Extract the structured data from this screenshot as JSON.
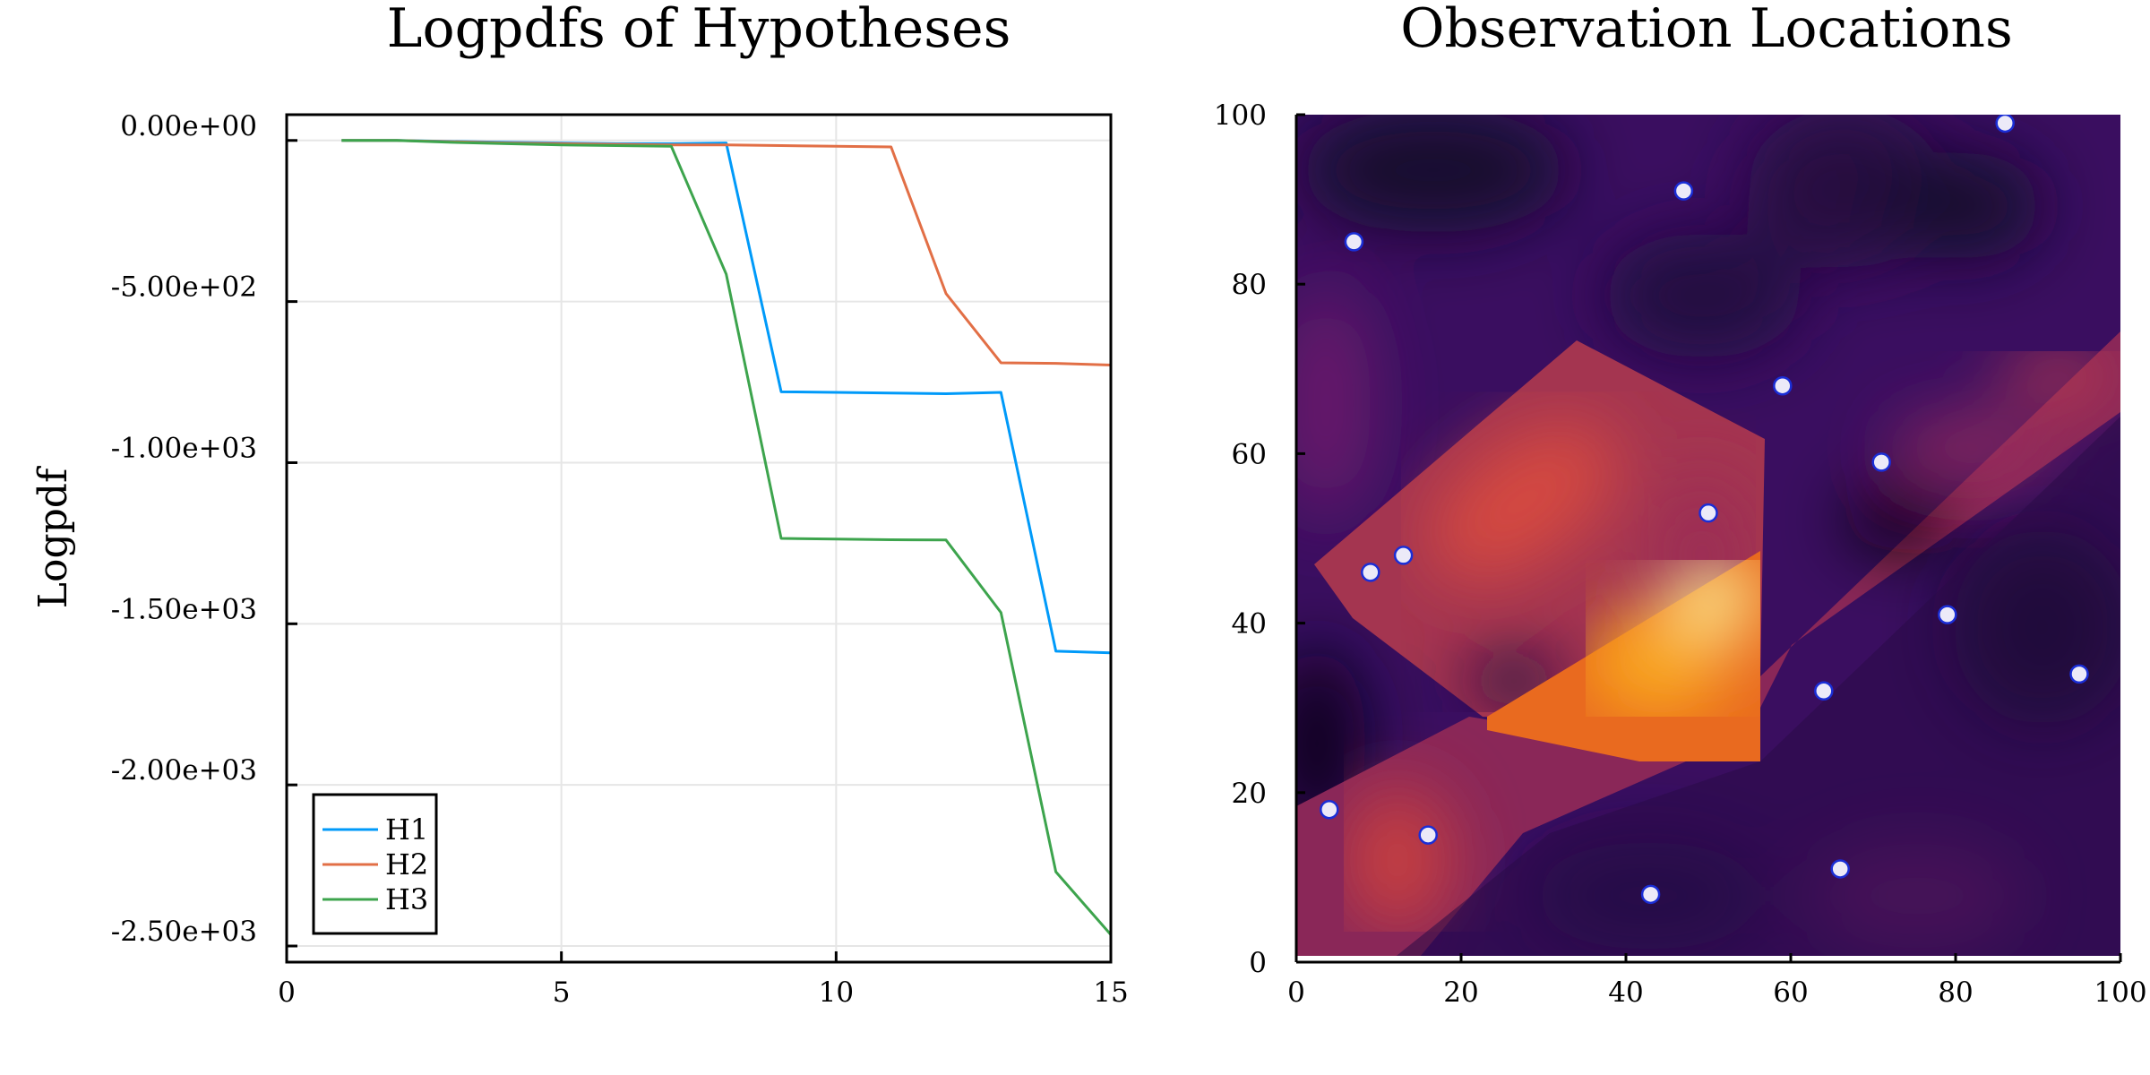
{
  "chart_data": [
    {
      "type": "line",
      "title": "Logpdfs of Hypotheses",
      "xlabel": "",
      "ylabel": "Logpdf",
      "xlim": [
        0,
        15
      ],
      "ylim": [
        -2550,
        80
      ],
      "xticks": [
        0,
        5,
        10,
        15
      ],
      "xtick_labels": [
        "0",
        "5",
        "10",
        "15"
      ],
      "yticks": [
        0,
        -500,
        -1000,
        -1500,
        -2000,
        -2500
      ],
      "ytick_labels": [
        "0.00e+00",
        "-5.00e+02",
        "-1.00e+03",
        "-1.50e+03",
        "-2.00e+03",
        "-2.50e+03"
      ],
      "grid": true,
      "legend": "bottom-left",
      "x": [
        1,
        2,
        3,
        4,
        5,
        6,
        7,
        8,
        9,
        10,
        11,
        12,
        13,
        14,
        15
      ],
      "series": [
        {
          "name": "H1",
          "color": "#009af9",
          "values": [
            0,
            0,
            -3,
            -6,
            -8,
            -10,
            -10,
            -8,
            -780,
            -782,
            -784,
            -786,
            -782,
            -1585,
            -1590
          ]
        },
        {
          "name": "H2",
          "color": "#e26f46",
          "values": [
            0,
            0,
            -4,
            -8,
            -10,
            -12,
            -14,
            -14,
            -16,
            -18,
            -20,
            -475,
            -690,
            -692,
            -697
          ]
        },
        {
          "name": "H3",
          "color": "#3da44d",
          "values": [
            0,
            0,
            -6,
            -10,
            -14,
            -16,
            -18,
            -415,
            -1235,
            -1237,
            -1239,
            -1240,
            -1465,
            -2270,
            -2465
          ]
        }
      ]
    },
    {
      "type": "heatmap",
      "title": "Observation Locations",
      "xlim": [
        0,
        100
      ],
      "ylim": [
        0,
        100
      ],
      "xticks": [
        0,
        20,
        40,
        60,
        80,
        100
      ],
      "xtick_labels": [
        "0",
        "20",
        "40",
        "60",
        "80",
        "100"
      ],
      "yticks": [
        0,
        20,
        40,
        60,
        80,
        100
      ],
      "ytick_labels": [
        "0",
        "20",
        "40",
        "60",
        "80",
        "100"
      ],
      "colormap": "inferno",
      "observations": [
        {
          "x": 4,
          "y": 18
        },
        {
          "x": 7,
          "y": 85
        },
        {
          "x": 9,
          "y": 46
        },
        {
          "x": 13,
          "y": 48
        },
        {
          "x": 16,
          "y": 15
        },
        {
          "x": 43,
          "y": 8
        },
        {
          "x": 47,
          "y": 91
        },
        {
          "x": 50,
          "y": 53
        },
        {
          "x": 59,
          "y": 68
        },
        {
          "x": 64,
          "y": 32
        },
        {
          "x": 66,
          "y": 11
        },
        {
          "x": 71,
          "y": 59
        },
        {
          "x": 79,
          "y": 41
        },
        {
          "x": 86,
          "y": 99
        },
        {
          "x": 95,
          "y": 34
        }
      ],
      "marker_fill": "#eceaf8",
      "marker_edge": "#1a2ed6"
    }
  ]
}
